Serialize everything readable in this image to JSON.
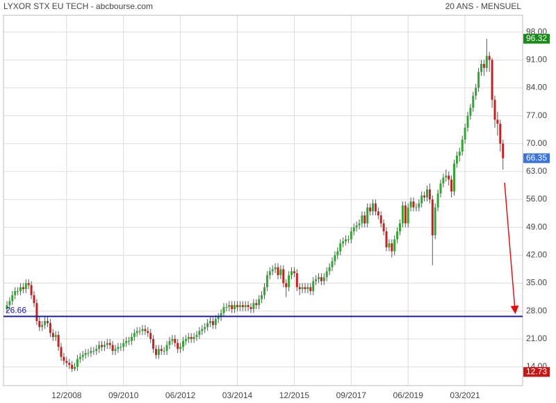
{
  "chart_data": {
    "type": "candlestick",
    "title": "LYXOR STX EU TECH - abcbourse.com",
    "subtitle": "20 ANS - MENSUEL",
    "up_color": "#2ea82e",
    "down_color": "#c62020",
    "wick_color": "#555555",
    "grid": true,
    "ylim": [
      9.3,
      102.2
    ],
    "yticks": [
      {
        "value": 14,
        "label": "14.00"
      },
      {
        "value": 21,
        "label": "21.00"
      },
      {
        "value": 28,
        "label": "28.00"
      },
      {
        "value": 35,
        "label": "35.00"
      },
      {
        "value": 42,
        "label": "42.00"
      },
      {
        "value": 49,
        "label": "49.00"
      },
      {
        "value": 56,
        "label": "56.00"
      },
      {
        "value": 63,
        "label": "63.00"
      },
      {
        "value": 70,
        "label": "70.00"
      },
      {
        "value": 77,
        "label": "77.00"
      },
      {
        "value": 84,
        "label": "84.00"
      },
      {
        "value": 91,
        "label": "91.00"
      },
      {
        "value": 98,
        "label": "98.00"
      }
    ],
    "xticks": [
      "12/2008",
      "09/2010",
      "06/2012",
      "03/2014",
      "12/2015",
      "09/2017",
      "06/2019",
      "03/2021"
    ],
    "reference_line": {
      "value": 26.66,
      "color": "#1a1aa0"
    },
    "markers": [
      {
        "value": 96.32,
        "color": "#178a17"
      },
      {
        "value": 66.35,
        "color": "#3b73d9"
      },
      {
        "value": 12.73,
        "color": "#c41818"
      }
    ],
    "x": [
      "02/2007",
      "03/2007",
      "04/2007",
      "05/2007",
      "06/2007",
      "07/2007",
      "08/2007",
      "09/2007",
      "10/2007",
      "11/2007",
      "12/2007",
      "01/2008",
      "02/2008",
      "03/2008",
      "04/2008",
      "05/2008",
      "06/2008",
      "07/2008",
      "08/2008",
      "09/2008",
      "10/2008",
      "11/2008",
      "12/2008",
      "01/2009",
      "02/2009",
      "03/2009",
      "04/2009",
      "05/2009",
      "06/2009",
      "07/2009",
      "08/2009",
      "09/2009",
      "10/2009",
      "11/2009",
      "12/2009",
      "01/2010",
      "02/2010",
      "03/2010",
      "04/2010",
      "05/2010",
      "06/2010",
      "07/2010",
      "08/2010",
      "09/2010",
      "10/2010",
      "11/2010",
      "12/2010",
      "01/2011",
      "02/2011",
      "03/2011",
      "04/2011",
      "05/2011",
      "06/2011",
      "07/2011",
      "08/2011",
      "09/2011",
      "10/2011",
      "11/2011",
      "12/2011",
      "01/2012",
      "02/2012",
      "03/2012",
      "04/2012",
      "05/2012",
      "06/2012",
      "07/2012",
      "08/2012",
      "09/2012",
      "10/2012",
      "11/2012",
      "12/2012",
      "01/2013",
      "02/2013",
      "03/2013",
      "04/2013",
      "05/2013",
      "06/2013",
      "07/2013",
      "08/2013",
      "09/2013",
      "10/2013",
      "11/2013",
      "12/2013",
      "01/2014",
      "02/2014",
      "03/2014",
      "04/2014",
      "05/2014",
      "06/2014",
      "07/2014",
      "08/2014",
      "09/2014",
      "10/2014",
      "11/2014",
      "12/2014",
      "01/2015",
      "02/2015",
      "03/2015",
      "04/2015",
      "05/2015",
      "06/2015",
      "07/2015",
      "08/2015",
      "09/2015",
      "10/2015",
      "11/2015",
      "12/2015",
      "01/2016",
      "02/2016",
      "03/2016",
      "04/2016",
      "05/2016",
      "06/2016",
      "07/2016",
      "08/2016",
      "09/2016",
      "10/2016",
      "11/2016",
      "12/2016",
      "01/2017",
      "02/2017",
      "03/2017",
      "04/2017",
      "05/2017",
      "06/2017",
      "07/2017",
      "08/2017",
      "09/2017",
      "10/2017",
      "11/2017",
      "12/2017",
      "01/2018",
      "02/2018",
      "03/2018",
      "04/2018",
      "05/2018",
      "06/2018",
      "07/2018",
      "08/2018",
      "09/2018",
      "10/2018",
      "11/2018",
      "12/2018",
      "01/2019",
      "02/2019",
      "03/2019",
      "04/2019",
      "05/2019",
      "06/2019",
      "07/2019",
      "08/2019",
      "09/2019",
      "10/2019",
      "11/2019",
      "12/2019",
      "01/2020",
      "02/2020",
      "03/2020",
      "04/2020",
      "05/2020",
      "06/2020",
      "07/2020",
      "08/2020",
      "09/2020",
      "10/2020",
      "11/2020",
      "12/2020",
      "01/2021",
      "02/2021",
      "03/2021",
      "04/2021",
      "05/2021",
      "06/2021",
      "07/2021",
      "08/2021",
      "09/2021",
      "10/2021",
      "11/2021",
      "12/2021",
      "01/2022",
      "02/2022",
      "03/2022",
      "04/2022",
      "05/2022"
    ],
    "open": [
      28.5,
      29.5,
      30.5,
      32,
      33,
      33,
      34,
      33.5,
      35,
      34.5,
      32,
      30,
      25.5,
      24,
      24.5,
      25.5,
      25,
      22.5,
      21.5,
      22,
      19,
      16.5,
      15.5,
      15,
      14.5,
      13.5,
      14,
      16,
      16.5,
      17,
      17.5,
      17.5,
      18,
      18,
      18.5,
      19.5,
      19,
      19.5,
      20,
      19.5,
      18,
      18.5,
      19,
      19,
      20,
      20.5,
      20.5,
      21.5,
      22.5,
      23,
      23,
      23.5,
      23,
      22.5,
      21,
      18.5,
      17,
      18.5,
      18,
      18,
      19.5,
      20.5,
      21,
      20,
      18.5,
      19,
      20.5,
      21,
      21.5,
      21,
      21.5,
      22,
      23,
      23.5,
      24,
      25,
      25.5,
      24.5,
      26,
      26.5,
      27.5,
      29,
      29,
      29.5,
      28.5,
      29.5,
      29,
      29.5,
      29,
      29.5,
      29,
      28.5,
      30,
      29.5,
      31,
      32,
      34,
      37,
      38,
      38.5,
      39,
      37,
      38.5,
      35,
      34,
      37,
      38,
      37.5,
      34,
      33.5,
      34,
      33.5,
      34,
      33,
      35.5,
      36,
      36.5,
      35.5,
      36.5,
      38,
      39,
      40.5,
      42,
      43,
      45,
      45.5,
      46,
      46,
      48,
      49,
      49.5,
      50,
      52,
      50,
      54,
      53,
      55,
      53,
      52,
      50,
      48,
      44,
      45,
      43,
      46,
      48,
      50,
      54.5,
      50,
      54,
      55.5,
      54,
      54,
      55,
      57,
      56.5,
      58.5,
      56,
      47,
      54,
      57.5,
      60,
      61.5,
      62,
      61,
      58,
      65,
      67,
      68,
      71,
      74,
      77,
      79,
      82,
      84,
      88,
      90,
      89,
      92,
      91,
      81,
      76,
      75,
      70
    ],
    "high": [
      30.5,
      31.5,
      33,
      34,
      34,
      35,
      35,
      36,
      36,
      35.5,
      33,
      31,
      26.5,
      25.5,
      26.5,
      26.5,
      26,
      23.5,
      23,
      23,
      20,
      17.5,
      16.5,
      16,
      15.5,
      15,
      17,
      17.5,
      18,
      18.5,
      18.5,
      19,
      19,
      19.5,
      20.5,
      20.5,
      20.5,
      21,
      21,
      20.5,
      19.5,
      20,
      20,
      21,
      21.5,
      21.5,
      22.5,
      23.5,
      24,
      24,
      24.5,
      24.5,
      24,
      23.5,
      22,
      19.5,
      19.5,
      19.5,
      19,
      20.5,
      21.5,
      22,
      22,
      21,
      20,
      21.5,
      22,
      22.5,
      22.5,
      22.5,
      23,
      24,
      24.5,
      25,
      26,
      26.5,
      26.5,
      27,
      27.5,
      28.5,
      30,
      30,
      30.5,
      30.5,
      30.5,
      30.5,
      30.5,
      30.5,
      30.5,
      30.5,
      30,
      31,
      31,
      32,
      33,
      35,
      38,
      39,
      39.5,
      40,
      40,
      39.5,
      39.5,
      36,
      38,
      39,
      39,
      38.5,
      35,
      35,
      35,
      35,
      35,
      36.5,
      37,
      37.5,
      37.5,
      37.5,
      39,
      40,
      41.5,
      43,
      44,
      46,
      46.5,
      47,
      47,
      49,
      50,
      50.5,
      51,
      53,
      53,
      55,
      55,
      56,
      56,
      54,
      53,
      51,
      49,
      46,
      46,
      47,
      49,
      51,
      55.5,
      55.5,
      55,
      56.5,
      56.5,
      55,
      56,
      58,
      58,
      59.5,
      60,
      57,
      55,
      58.5,
      61,
      62.5,
      63.5,
      63,
      62,
      66,
      68,
      69,
      72,
      75,
      78,
      80,
      83,
      85,
      89,
      91,
      91,
      96.32,
      93,
      91.5,
      82,
      78,
      76,
      71
    ],
    "low": [
      27.5,
      28.5,
      29.5,
      31,
      32,
      32,
      32.5,
      32.5,
      33.5,
      31,
      29,
      24.5,
      23,
      23,
      23.5,
      24,
      21.5,
      20.5,
      20.5,
      18,
      15.5,
      14.5,
      14,
      13.5,
      12.73,
      13,
      13,
      15,
      15.5,
      16,
      16.5,
      16.5,
      17,
      17,
      17.5,
      18,
      18,
      18.5,
      18.5,
      17,
      17,
      17.5,
      18,
      18,
      19,
      19.5,
      19.5,
      20.5,
      21.5,
      22,
      22,
      22,
      21.5,
      20,
      17.5,
      16,
      16,
      17,
      17,
      17,
      18.5,
      19.5,
      19,
      17.5,
      17.5,
      18,
      19.5,
      20,
      20,
      20,
      20.5,
      21,
      22,
      22.5,
      23,
      24,
      23.5,
      23.5,
      25,
      25.5,
      26.5,
      28,
      28,
      27.5,
      27.5,
      28,
      28,
      28,
      28,
      28,
      27.5,
      27.5,
      28.5,
      28.5,
      30,
      31,
      33,
      36,
      37,
      37.5,
      36,
      36,
      34,
      31.5,
      33,
      36,
      36.5,
      33,
      32,
      32.5,
      32.5,
      32.5,
      32,
      32,
      34.5,
      35,
      34.5,
      34.5,
      35.5,
      37,
      38,
      39.5,
      41,
      42,
      44,
      44.5,
      45,
      45,
      47,
      48,
      48.5,
      49,
      49,
      49,
      52,
      52,
      52,
      51,
      49,
      47,
      43,
      43,
      41.5,
      42,
      45,
      47,
      49,
      49,
      49,
      53,
      53,
      53,
      53,
      54,
      55.5,
      55.5,
      55,
      39.5,
      46,
      53,
      56.5,
      59,
      60.5,
      59.5,
      56.5,
      57,
      64,
      65.5,
      67,
      70,
      73,
      76,
      78,
      81,
      83,
      87,
      87,
      88,
      88,
      79,
      74,
      72,
      68,
      63.5
    ],
    "close": [
      29.5,
      30.5,
      32,
      33,
      33,
      34,
      33.5,
      35,
      34.5,
      32,
      30,
      25.5,
      24,
      24.5,
      25.5,
      25,
      22.5,
      21.5,
      22,
      19,
      16.5,
      15.5,
      15,
      14.5,
      13.5,
      14,
      16,
      16.5,
      17,
      17.5,
      17.5,
      18,
      18,
      18.5,
      19.5,
      19,
      19.5,
      20,
      19.5,
      18,
      18.5,
      19,
      19,
      20,
      20.5,
      20.5,
      21.5,
      22.5,
      23,
      23,
      23.5,
      23,
      22.5,
      21,
      18.5,
      17,
      18.5,
      18,
      18,
      19.5,
      20.5,
      21,
      20,
      18.5,
      19,
      20.5,
      21,
      21.5,
      21,
      21.5,
      22,
      23,
      23.5,
      24,
      25,
      25.5,
      24.5,
      26,
      26.5,
      27.5,
      29,
      29,
      29.5,
      28.5,
      29.5,
      29,
      29.5,
      29,
      29.5,
      29,
      28.5,
      30,
      29.5,
      31,
      32,
      34,
      37,
      38,
      38.5,
      39,
      37,
      38.5,
      35,
      34,
      37,
      38,
      37.5,
      34,
      33.5,
      34,
      33.5,
      34,
      33,
      35.5,
      36,
      36.5,
      35.5,
      36.5,
      38,
      39,
      40.5,
      42,
      43,
      45,
      45.5,
      46,
      46,
      48,
      49,
      49.5,
      50,
      52,
      50,
      54,
      53,
      55,
      53,
      52,
      50,
      48,
      44,
      45,
      43,
      46,
      48,
      50,
      54.5,
      50,
      54,
      55.5,
      54,
      54,
      55,
      57,
      56.5,
      58.5,
      56,
      47,
      54,
      57.5,
      60,
      61.5,
      62,
      61,
      58,
      65,
      67,
      68,
      71,
      74,
      77,
      79,
      82,
      84,
      88,
      90,
      89,
      92,
      91,
      81,
      76,
      75,
      70,
      66.35
    ]
  }
}
